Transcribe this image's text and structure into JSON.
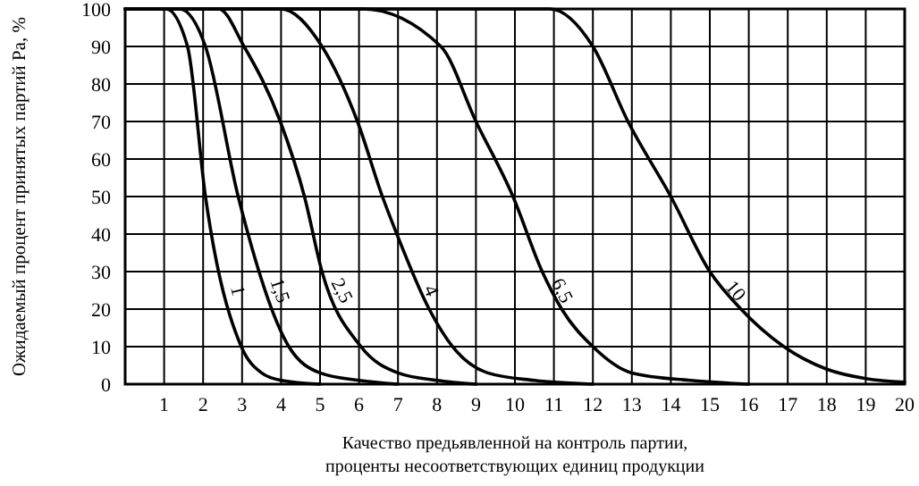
{
  "chart_data": {
    "type": "line",
    "xlabel": "Качество предьявленной на контроль партии,\nпроценты несоответствующих единиц продукции",
    "ylabel": "Ожидаемый процент принятых партий Pa, %",
    "xlim": [
      0,
      20
    ],
    "xticks": [
      1,
      2,
      3,
      4,
      5,
      6,
      7,
      8,
      9,
      10,
      11,
      12,
      13,
      14,
      15,
      16,
      17,
      18,
      19,
      20
    ],
    "ylim": [
      0,
      100
    ],
    "yticks": [
      0,
      10,
      20,
      30,
      40,
      50,
      60,
      70,
      80,
      90,
      100
    ],
    "grid": true,
    "marker": "none",
    "line_style": "solid",
    "series": [
      {
        "name": "1",
        "color": "#000000",
        "x": [
          0,
          1.05,
          1.6,
          2.06,
          2.98,
          3.5,
          4,
          5
        ],
        "values": [
          100,
          100,
          90,
          50,
          10,
          3,
          1,
          0
        ]
      },
      {
        "name": "1,5",
        "color": "#000000",
        "x": [
          0,
          1.4,
          2.06,
          2.9,
          4.2,
          5,
          6,
          7
        ],
        "values": [
          100,
          100,
          90,
          50,
          10,
          3,
          1,
          0
        ]
      },
      {
        "name": "2,5",
        "color": "#000000",
        "x": [
          0,
          2.4,
          3.05,
          3.98,
          4.6,
          5.05,
          6.05,
          7,
          8,
          9
        ],
        "values": [
          100,
          100,
          90,
          70,
          50,
          30,
          10,
          3,
          1,
          0
        ]
      },
      {
        "name": "4",
        "color": "#000000",
        "x": [
          0,
          4,
          5.05,
          5.96,
          6.6,
          6.97,
          7.8,
          8.4,
          9.3,
          10.5,
          12
        ],
        "values": [
          100,
          100,
          90,
          70,
          50,
          40,
          20,
          10,
          3,
          1,
          0
        ]
      },
      {
        "name": "6,5",
        "color": "#000000",
        "x": [
          0,
          6.1,
          8.1,
          9,
          9.95,
          10.7,
          11.2,
          12,
          13,
          14.5,
          16
        ],
        "values": [
          100,
          100,
          90,
          70,
          50,
          30,
          20,
          10,
          3,
          1,
          0
        ]
      },
      {
        "name": "10",
        "color": "#000000",
        "x": [
          0,
          10.9,
          12,
          12.9,
          14,
          15,
          15.8,
          16.9,
          18,
          19,
          20
        ],
        "values": [
          100,
          100,
          90,
          70,
          50,
          30,
          20,
          10,
          4,
          1.5,
          0.5
        ]
      }
    ]
  }
}
